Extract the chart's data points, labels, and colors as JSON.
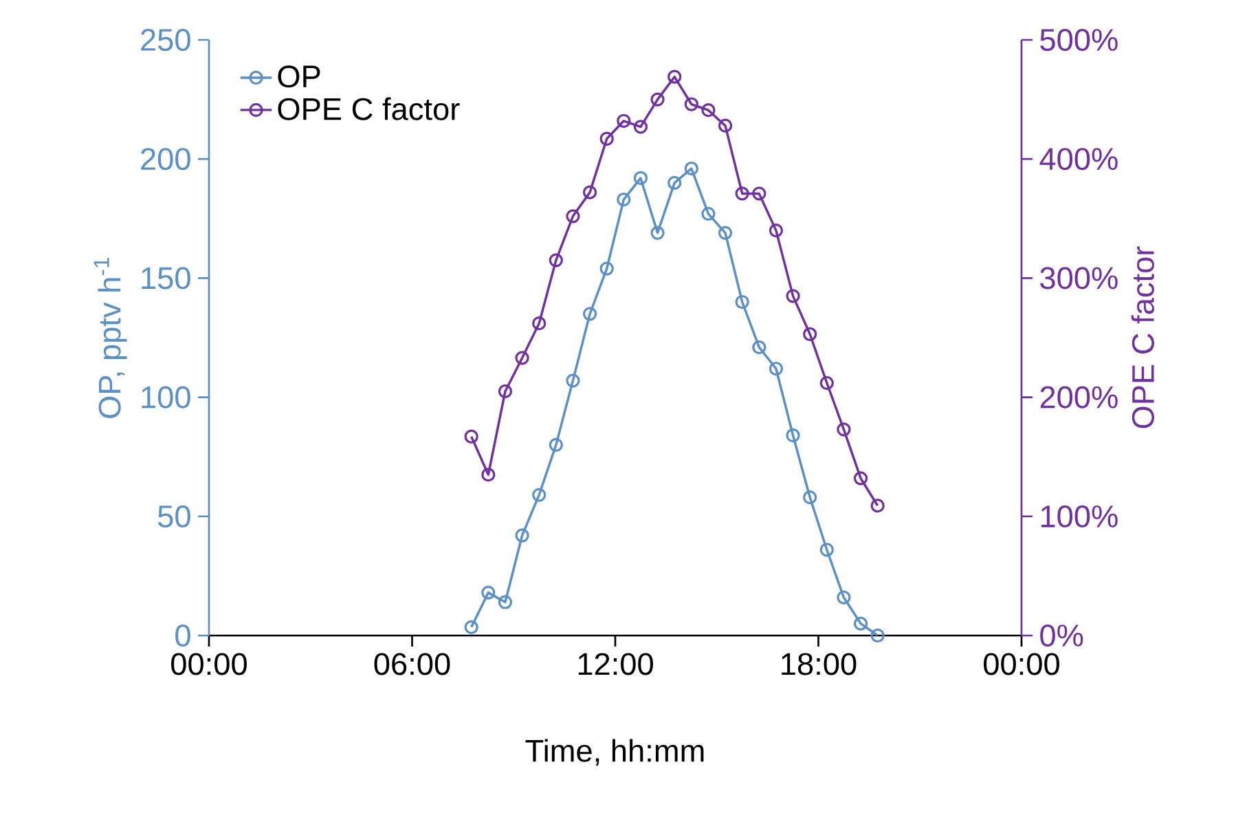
{
  "chart_data": {
    "type": "line",
    "xlabel": "Time, hh:mm",
    "ylabel": "OP, pptv h$^{-1}$",
    "y2label": "OPE C factor",
    "x": [
      7.75,
      8.25,
      8.75,
      9.25,
      9.75,
      10.25,
      10.75,
      11.25,
      11.75,
      12.25,
      12.75,
      13.25,
      13.75,
      14.25,
      14.75,
      15.25,
      15.75,
      16.25,
      16.75,
      17.25,
      17.75,
      18.25,
      18.75,
      19.25,
      19.75
    ],
    "series": [
      {
        "name": "OP",
        "color": "#5b8fc7",
        "values": [
          3.5,
          18,
          14,
          42,
          59,
          80,
          107,
          135,
          154,
          183,
          192,
          169,
          190,
          196,
          177,
          169,
          140,
          121,
          112,
          84,
          58,
          36,
          16,
          5,
          0
        ]
      },
      {
        "name": "OPE C factor",
        "color": "#7030a0",
        "axis": "y2",
        "values": [
          167,
          135,
          205,
          233,
          262,
          315,
          352,
          372,
          417,
          432,
          427,
          450,
          469,
          446,
          441,
          428,
          371,
          371,
          340,
          285,
          253,
          212,
          173,
          132,
          109
        ]
      }
    ],
    "xlim": [
      0,
      24
    ],
    "xticks": [
      {
        "value": 0,
        "label": "00:00"
      },
      {
        "value": 6,
        "label": "06:00"
      },
      {
        "value": 12,
        "label": "12:00"
      },
      {
        "value": 18,
        "label": "18:00"
      },
      {
        "value": 24,
        "label": "00:00"
      }
    ],
    "ylim": [
      0,
      250
    ],
    "yticks": [
      0,
      50,
      100,
      150,
      200,
      250
    ],
    "y2lim": [
      0,
      500
    ],
    "y2ticks": [
      {
        "value": 0,
        "label": "0%"
      },
      {
        "value": 100,
        "label": "100%"
      },
      {
        "value": 200,
        "label": "200%"
      },
      {
        "value": 300,
        "label": "300%"
      },
      {
        "value": 400,
        "label": "400%"
      },
      {
        "value": 500,
        "label": "500%"
      }
    ],
    "legend": "top left",
    "grid": false,
    "marker": "circle",
    "line_style": "solid"
  }
}
